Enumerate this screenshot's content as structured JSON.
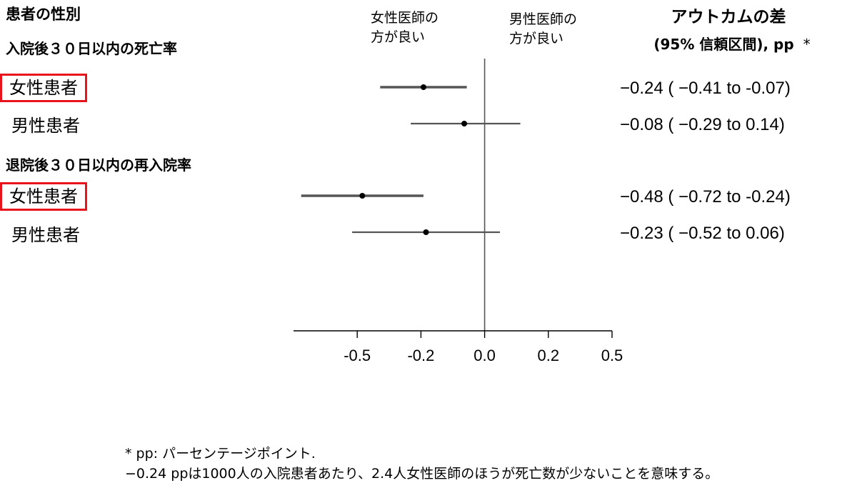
{
  "header": {
    "sex_title": "患者の性別",
    "favors_female": "女性医師の\n方が良い",
    "favors_male": "男性医師の\n方が良い",
    "outcome_title": "アウトカムの差",
    "outcome_sub": "(95% 信頼区間), pp",
    "outcome_asterisk": "*"
  },
  "groups": [
    {
      "title": "入院後３０日以内の死亡率",
      "rows": [
        {
          "label": "女性患者",
          "highlighted": true,
          "text": "−0.24 (  −0.41 to  -0.07)"
        },
        {
          "label": "男性患者",
          "highlighted": false,
          "text": "−0.08 (  −0.29 to   0.14)"
        }
      ]
    },
    {
      "title": "退院後３０日以内の再入院率",
      "rows": [
        {
          "label": "女性患者",
          "highlighted": true,
          "text": "−0.48 (  −0.72 to  -0.24)"
        },
        {
          "label": "男性患者",
          "highlighted": false,
          "text": "−0.23 (  −0.52 to   0.06)"
        }
      ]
    }
  ],
  "footnote": {
    "line1": "* pp: パーセンテージポイント.",
    "line2": "−0.24 ppは1000人の入院患者あたり、2.4人女性医師のほうが死亡数が少ないことを意味する。"
  },
  "colors": {
    "highlight_box": "#e8141b",
    "ci_line": "#555555",
    "point": "#000000",
    "axis": "#000000",
    "zero_line": "#555555"
  },
  "chart_data": {
    "type": "forest",
    "xlim": [
      -0.75,
      0.5
    ],
    "xticks": [
      -0.5,
      -0.25,
      0.0,
      0.25,
      0.5
    ],
    "xtick_labels": [
      "-0.5",
      "-0.2",
      "0.0",
      "0.2",
      "0.5"
    ],
    "reference_line": 0.0,
    "series": [
      {
        "group": "入院後３０日以内の死亡率",
        "label": "女性患者",
        "estimate": -0.24,
        "lower": -0.41,
        "upper": -0.07
      },
      {
        "group": "入院後３０日以内の死亡率",
        "label": "男性患者",
        "estimate": -0.08,
        "lower": -0.29,
        "upper": 0.14
      },
      {
        "group": "退院後３０日以内の再入院率",
        "label": "女性患者",
        "estimate": -0.48,
        "lower": -0.72,
        "upper": -0.24
      },
      {
        "group": "退院後３０日以内の再入院率",
        "label": "男性患者",
        "estimate": -0.23,
        "lower": -0.52,
        "upper": 0.06
      }
    ]
  }
}
